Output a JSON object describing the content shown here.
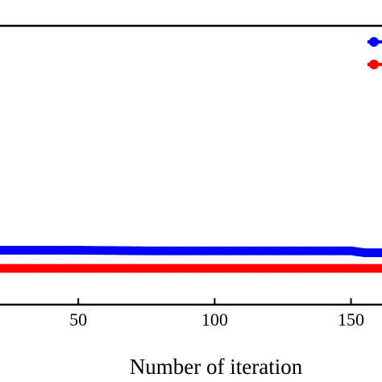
{
  "chart_data": {
    "type": "line",
    "xlabel": "Number of iteration",
    "ylabel": "",
    "title": "",
    "xlim": [
      0,
      180
    ],
    "ylim": [
      0,
      1
    ],
    "grid": false,
    "legend_position": "top-right",
    "x_ticks": [
      50,
      100,
      150
    ],
    "x_tick_labels": [
      "50",
      "100",
      "150"
    ],
    "series": [
      {
        "name": "",
        "color": "#0000ff",
        "marker": "circle",
        "x": [
          0,
          25,
          50,
          75,
          100,
          125,
          150,
          155,
          165,
          180
        ],
        "y": [
          0.195,
          0.195,
          0.195,
          0.193,
          0.193,
          0.193,
          0.193,
          0.186,
          0.186,
          0.186
        ]
      },
      {
        "name": "",
        "color": "#ff0000",
        "marker": "circle",
        "x": [
          0,
          25,
          50,
          75,
          100,
          125,
          150,
          165,
          180
        ],
        "y": [
          0.13,
          0.13,
          0.13,
          0.13,
          0.13,
          0.13,
          0.13,
          0.13,
          0.13
        ]
      }
    ]
  }
}
